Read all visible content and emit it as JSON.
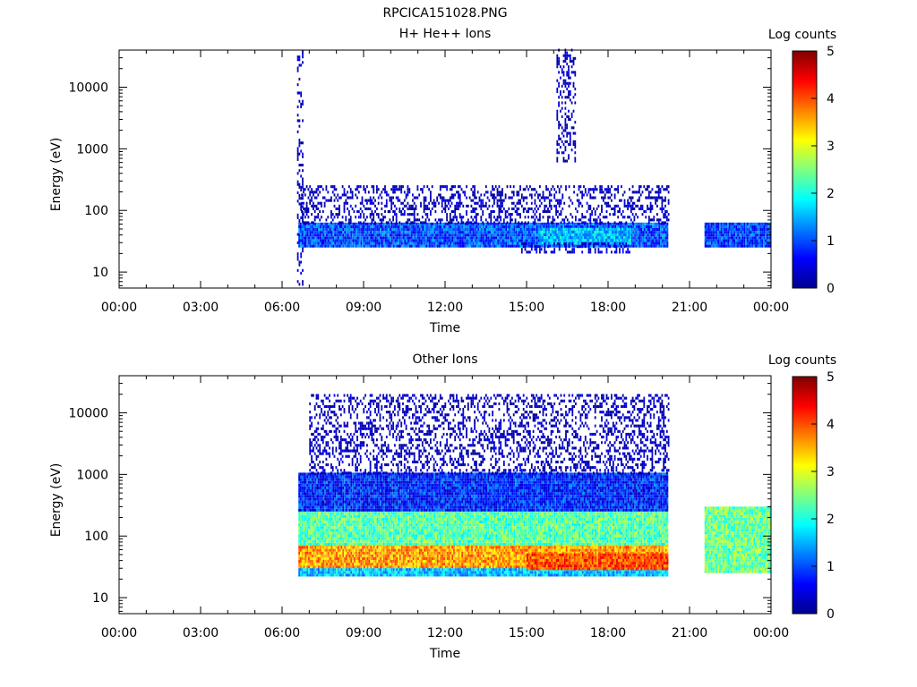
{
  "figure": {
    "title": "RPCICA151028.PNG"
  },
  "panels": [
    {
      "title": "H+ He++ Ions",
      "colorbar_label": "Log counts",
      "xlabel": "Time",
      "ylabel": "Energy (eV)",
      "x_ticks": [
        "00:00",
        "03:00",
        "06:00",
        "09:00",
        "12:00",
        "15:00",
        "18:00",
        "21:00",
        "00:00"
      ],
      "y_ticks": [
        "10",
        "100",
        "1000",
        "10000"
      ],
      "colorbar_ticks": [
        "0",
        "1",
        "2",
        "3",
        "4",
        "5"
      ]
    },
    {
      "title": "Other Ions",
      "colorbar_label": "Log counts",
      "xlabel": "Time",
      "ylabel": "Energy (eV)",
      "x_ticks": [
        "00:00",
        "03:00",
        "06:00",
        "09:00",
        "12:00",
        "15:00",
        "18:00",
        "21:00",
        "00:00"
      ],
      "y_ticks": [
        "10",
        "100",
        "1000",
        "10000"
      ],
      "colorbar_ticks": [
        "0",
        "1",
        "2",
        "3",
        "4",
        "5"
      ]
    }
  ],
  "chart_data": [
    {
      "type": "heatmap",
      "title": "H+ He++ Ions",
      "xlabel": "Time",
      "ylabel": "Energy (eV)",
      "x_range_hours": [
        0,
        24
      ],
      "y_range_eV": [
        5.5,
        40000
      ],
      "y_scale": "log",
      "color_scale": {
        "label": "Log counts",
        "range": [
          0,
          5
        ],
        "colormap": "jet"
      },
      "data_intervals_hours": [
        [
          6.55,
          20.2
        ],
        [
          21.55,
          23.95
        ]
      ],
      "regions": [
        {
          "name": "burst_0640",
          "t": [
            6.55,
            6.75
          ],
          "e": [
            6,
            40000
          ],
          "level": 0.3
        },
        {
          "name": "burst_1630",
          "t": [
            16.1,
            16.8
          ],
          "e": [
            600,
            40000
          ],
          "level": 0.3
        },
        {
          "name": "core_band",
          "t": [
            6.6,
            20.2
          ],
          "e": [
            25,
            60
          ],
          "level": 1.0
        },
        {
          "name": "core_band_late",
          "t": [
            21.55,
            23.95
          ],
          "e": [
            25,
            60
          ],
          "level": 0.9
        },
        {
          "name": "intense_1500_1800",
          "t": [
            15.5,
            18.8
          ],
          "e": [
            28,
            50
          ],
          "level": 1.6
        },
        {
          "name": "low_energy_1500_1800",
          "t": [
            14.8,
            18.8
          ],
          "e": [
            20,
            28
          ],
          "level": 0.4
        },
        {
          "name": "upper_sparse",
          "t": [
            6.7,
            20.2
          ],
          "e": [
            60,
            250
          ],
          "level": 0.3
        }
      ]
    },
    {
      "type": "heatmap",
      "title": "Other Ions",
      "xlabel": "Time",
      "ylabel": "Energy (eV)",
      "x_range_hours": [
        0,
        24
      ],
      "y_range_eV": [
        5.5,
        40000
      ],
      "y_scale": "log",
      "color_scale": {
        "label": "Log counts",
        "range": [
          0,
          5
        ],
        "colormap": "jet"
      },
      "data_intervals_hours": [
        [
          6.55,
          20.2
        ],
        [
          21.55,
          23.95
        ]
      ],
      "regions": [
        {
          "name": "main_band_peak",
          "t": [
            6.6,
            20.2
          ],
          "e": [
            30,
            70
          ],
          "level": 3.6
        },
        {
          "name": "main_band_upper",
          "t": [
            6.6,
            20.2
          ],
          "e": [
            70,
            250
          ],
          "level": 2.3
        },
        {
          "name": "main_band_top",
          "t": [
            6.6,
            20.2
          ],
          "e": [
            250,
            1000
          ],
          "level": 0.8
        },
        {
          "name": "lower_cutoff_band",
          "t": [
            6.6,
            20.2
          ],
          "e": [
            22,
            30
          ],
          "level": 1.6
        },
        {
          "name": "intense_1500_1800",
          "t": [
            15.0,
            20.2
          ],
          "e": [
            28,
            50
          ],
          "level": 4.0
        },
        {
          "name": "late_interval_band",
          "t": [
            21.55,
            23.95
          ],
          "e": [
            25,
            300
          ],
          "level": 2.4
        },
        {
          "name": "sparse_high_energy",
          "t": [
            7.0,
            20.2
          ],
          "e": [
            1000,
            20000
          ],
          "level": 0.3
        }
      ]
    }
  ]
}
